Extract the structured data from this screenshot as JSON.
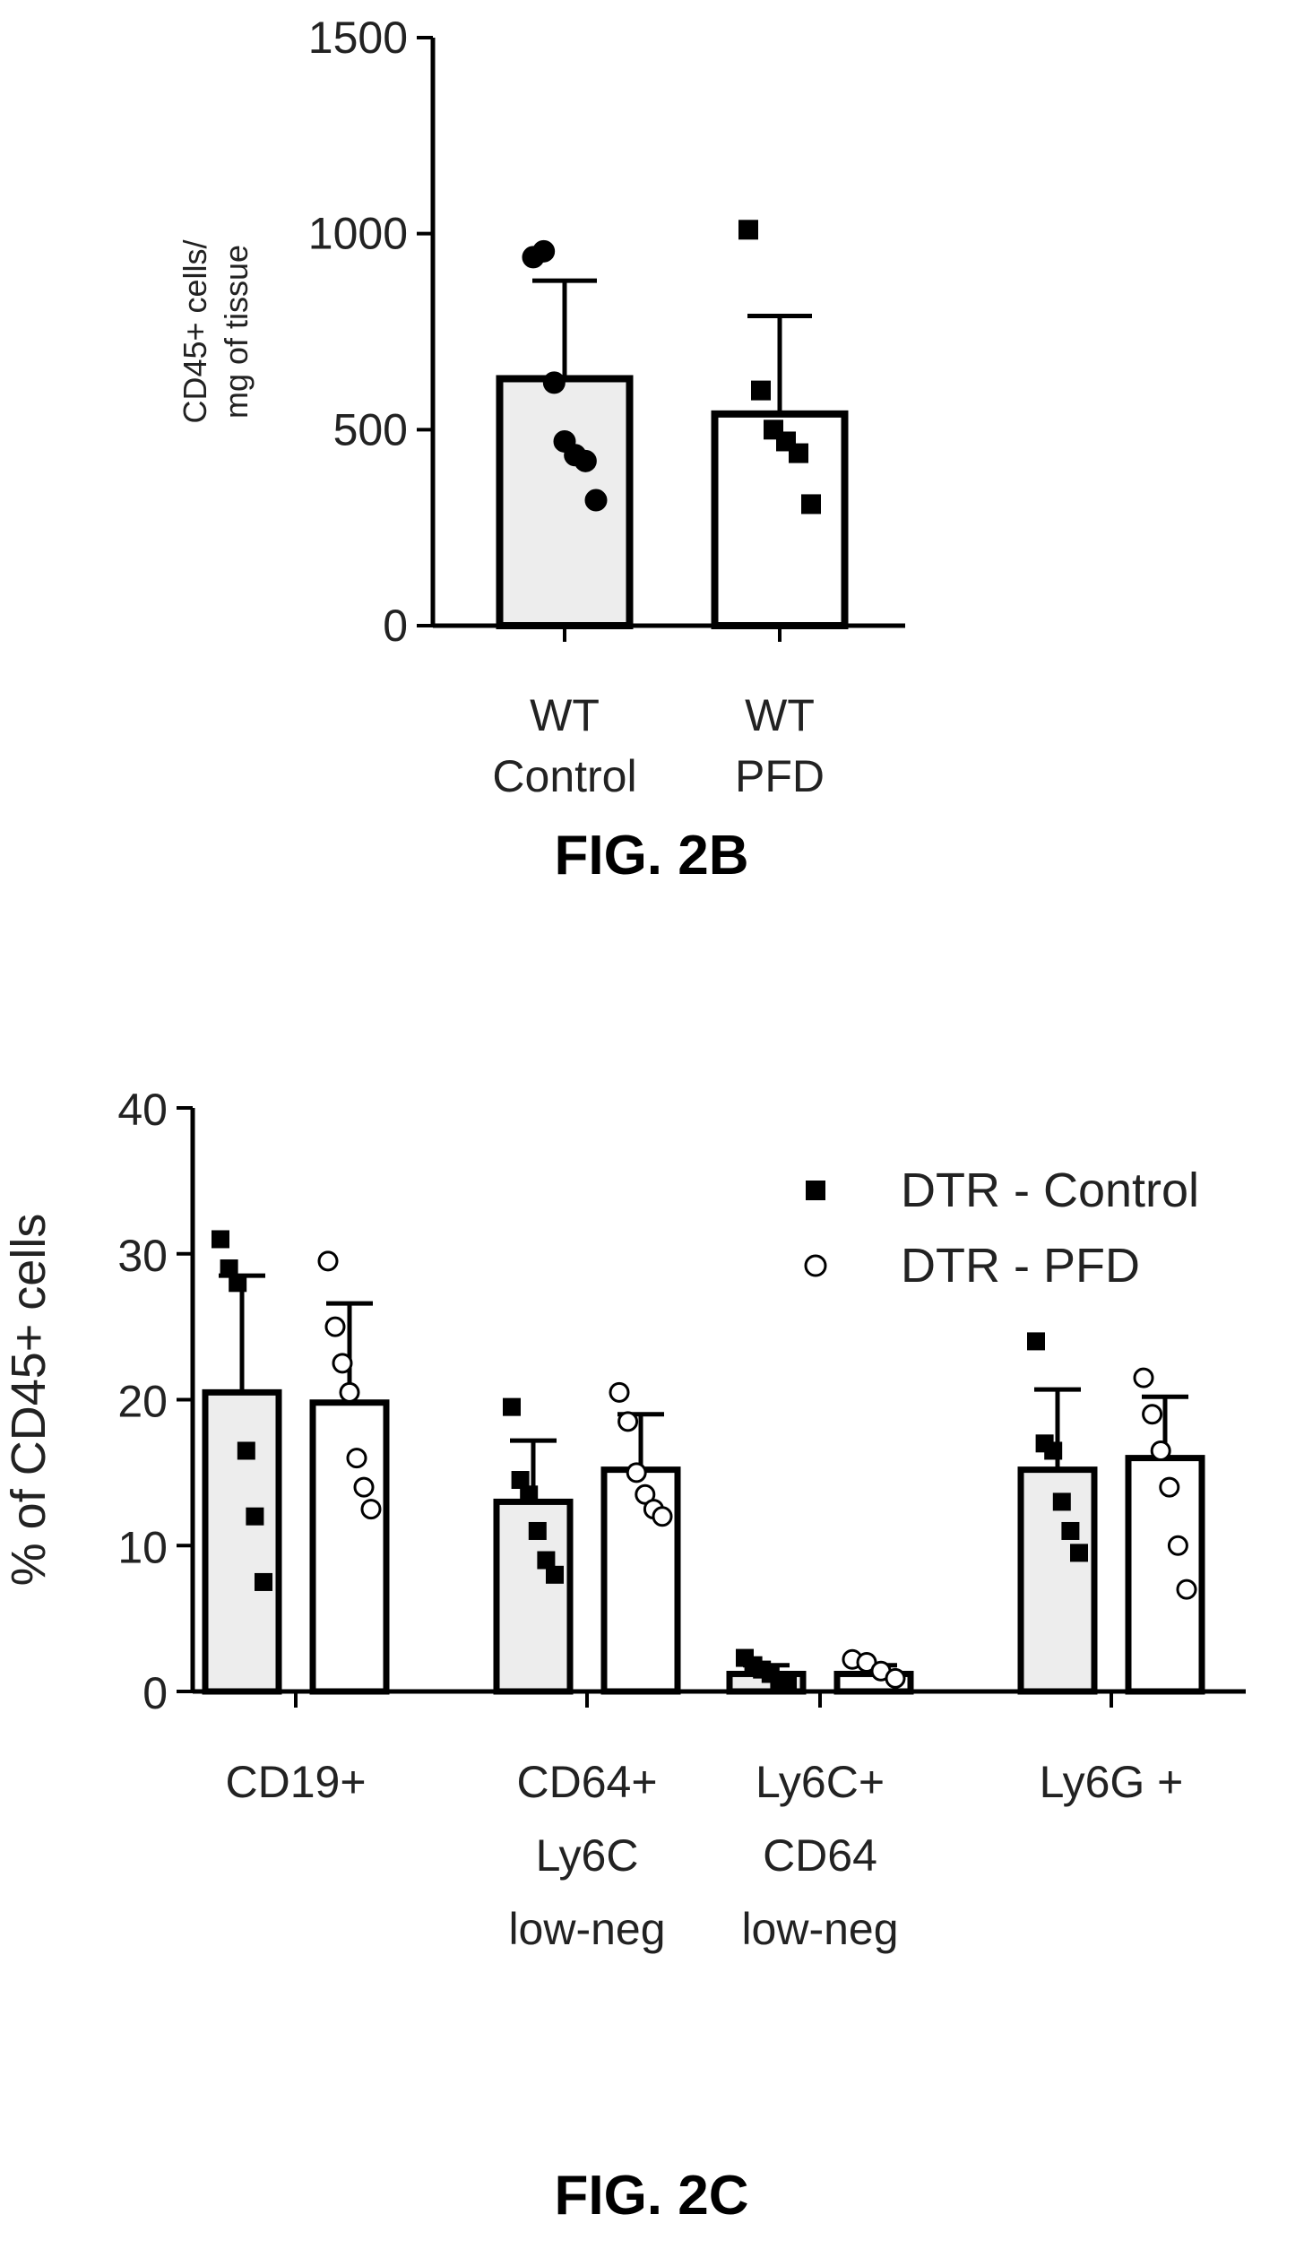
{
  "chart_data": [
    {
      "type": "bar",
      "caption": "FIG. 2B",
      "ylabel_lines": [
        "CD45+ cells/",
        "mg of tissue"
      ],
      "ylim": [
        0,
        1500
      ],
      "yticks": [
        0,
        500,
        1000,
        1500
      ],
      "grid": false,
      "categories": [
        {
          "lines": [
            "WT",
            "Control"
          ],
          "fill": "#ededed"
        },
        {
          "lines": [
            "WT",
            "PFD"
          ],
          "fill": "#ffffff"
        }
      ],
      "values": [
        630,
        540
      ],
      "errors": [
        250,
        250
      ],
      "points": [
        {
          "marker": "circle",
          "values": [
            940,
            955,
            620,
            470,
            435,
            420,
            320
          ]
        },
        {
          "marker": "square",
          "values": [
            1010,
            600,
            500,
            470,
            440,
            310
          ]
        }
      ]
    },
    {
      "type": "bar",
      "caption": "FIG. 2C",
      "ylabel": "% of CD45+ cells",
      "ylim": [
        0,
        40
      ],
      "yticks": [
        0,
        10,
        20,
        30,
        40
      ],
      "grid": false,
      "legend_position": "top-right",
      "categories": [
        [
          "CD19+"
        ],
        [
          "CD64+",
          "Ly6C",
          "low-neg"
        ],
        [
          "Ly6C+",
          "CD64",
          "low-neg"
        ],
        [
          "Ly6G +"
        ]
      ],
      "series": [
        {
          "name": "DTR - Control",
          "marker": "square",
          "fill": "#ededed",
          "values": [
            20.5,
            13.0,
            1.2,
            15.2
          ],
          "errors": [
            8.0,
            4.2,
            0.6,
            5.5
          ],
          "points": [
            [
              31,
              29,
              28,
              16.5,
              12,
              7.5
            ],
            [
              19.5,
              14.5,
              13.5,
              11,
              9,
              8
            ],
            [
              2.3,
              1.8,
              1.5,
              1.2,
              0.8,
              0.5
            ],
            [
              24,
              17,
              16.5,
              13,
              11,
              9.5
            ]
          ]
        },
        {
          "name": "DTR - PFD",
          "marker": "circle",
          "fill": "#ffffff",
          "values": [
            19.8,
            15.2,
            1.2,
            16.0
          ],
          "errors": [
            6.8,
            3.8,
            0.6,
            4.2
          ],
          "points": [
            [
              29.5,
              25,
              22.5,
              20.5,
              16,
              14,
              12.5
            ],
            [
              20.5,
              18.5,
              15,
              13.5,
              12.5,
              12
            ],
            [
              2.2,
              2.0,
              1.4,
              0.9
            ],
            [
              21.5,
              19,
              16.5,
              14,
              10,
              7
            ]
          ]
        }
      ]
    }
  ]
}
